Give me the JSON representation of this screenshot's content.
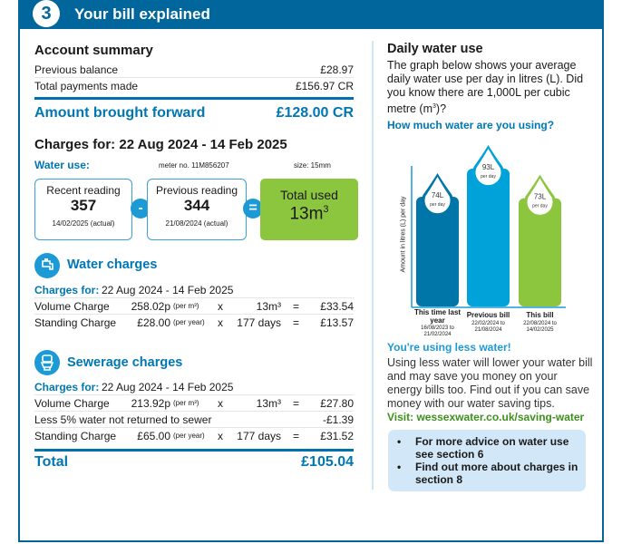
{
  "header": {
    "section_number": "3",
    "title": "Your bill explained"
  },
  "account": {
    "title": "Account summary",
    "rows": [
      {
        "label": "Previous balance",
        "value": "£28.97"
      },
      {
        "label": "Total payments made",
        "value": "£156.97 CR"
      }
    ],
    "brought_forward_label": "Amount brought forward",
    "brought_forward_value": "£128.00 CR"
  },
  "charges": {
    "title": "Charges for: 22 Aug 2024 - 14 Feb 2025",
    "water_use_label": "Water use:",
    "meter": "meter no. 11M856207",
    "size": "size: 15mm",
    "recent": {
      "label": "Recent reading",
      "value": "357",
      "date": "14/02/2025 (actual)"
    },
    "previous": {
      "label": "Previous reading",
      "value": "344",
      "date": "21/08/2024 (actual)"
    },
    "minus": "-",
    "equals": "=",
    "total": {
      "label": "Total used",
      "value": "13m",
      "sup": "3"
    }
  },
  "water": {
    "title": "Water charges",
    "charges_for_label": "Charges for:",
    "period": "22 Aug 2024 - 14 Feb 2025",
    "rows": [
      {
        "label": "Volume Charge",
        "rate": "258.02p",
        "unit": "(per m³)",
        "x": "x",
        "qty": "13m³",
        "eq": "=",
        "amount": "£33.54"
      },
      {
        "label": "Standing Charge",
        "rate": "£28.00",
        "unit": "(per year)",
        "x": "x",
        "qty": "177 days",
        "eq": "=",
        "amount": "£13.57"
      }
    ]
  },
  "sewerage": {
    "title": "Sewerage charges",
    "charges_for_label": "Charges for:",
    "period": "22 Aug 2024 - 14 Feb 2025",
    "rows": [
      {
        "label": "Volume Charge",
        "rate": "213.92p",
        "unit": "(per m³)",
        "x": "x",
        "qty": "13m³",
        "eq": "=",
        "amount": "£27.80"
      },
      {
        "label": "Standing Charge",
        "rate": "£65.00",
        "unit": "(per year)",
        "x": "x",
        "qty": "177 days",
        "eq": "=",
        "amount": "£31.52"
      }
    ],
    "less_label": "Less 5% water not returned to sewer",
    "less_amount": "-£1.39"
  },
  "total": {
    "label": "Total",
    "value": "£105.04"
  },
  "daily": {
    "title": "Daily water use",
    "intro": "The graph below shows your average daily water use per day in litres (L). Did you know there are 1,000L per cubic metre (m",
    "intro_sup": "3",
    "intro_end": ")?",
    "question": "How much water are you using?",
    "less_title": "You're using less water!",
    "less_text": "Using less water will lower your water bill and may save you money on your energy bills too. Find out if you can save money with our water saving tips.",
    "visit": "Visit: wessexwater.co.uk/saving-water",
    "tips": [
      "For more advice on water use see section 6",
      "Find out more about charges in section 8"
    ]
  },
  "chart_data": {
    "type": "bar",
    "ylabel": "Amount in litres (L) per day",
    "unit_label": "per day",
    "categories": [
      "This time last year",
      "Previous bill",
      "This bill"
    ],
    "date_ranges": [
      "16/08/2023 to 21/02/2024",
      "22/02/2024 to 21/08/2024",
      "22/08/2024 to 14/02/2025"
    ],
    "values": [
      74,
      93,
      73
    ],
    "value_labels": [
      "74L",
      "93L",
      "73L"
    ],
    "colors": [
      "#0075a8",
      "#00a3d9",
      "#8cc63f"
    ]
  }
}
